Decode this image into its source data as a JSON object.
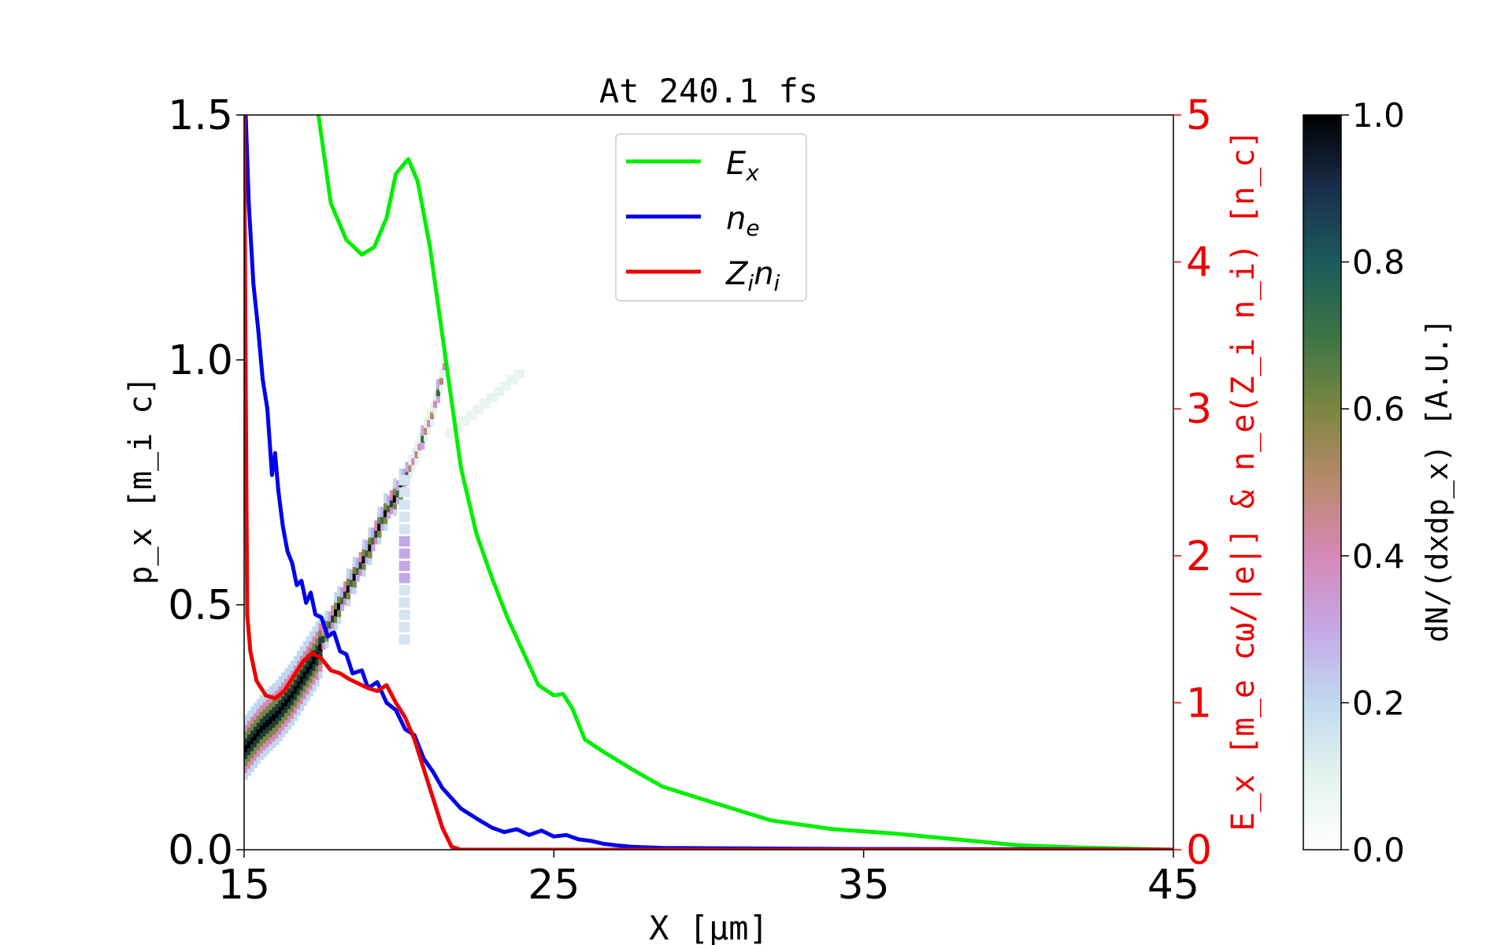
{
  "chart_data": {
    "type": "line",
    "title": "At 240.1 fs",
    "xlabel": "X [μm]",
    "ylabel_left": "p_x [m_i c]",
    "ylabel_right": "E_x [m_e cω/|e|] & n_e(Z_i n_i) [n_c]",
    "colorbar_label": "dN/(dxdp_x) [A.U.]",
    "xlim": [
      15,
      45
    ],
    "ylim_left": [
      0,
      1.5
    ],
    "ylim_right": [
      0,
      5
    ],
    "colorbar_lim": [
      0,
      1
    ],
    "x_ticks": [
      "15",
      "25",
      "35",
      "45"
    ],
    "y_left_ticks": [
      "0.0",
      "0.5",
      "1.0",
      "1.5"
    ],
    "y_right_ticks": [
      "0",
      "1",
      "2",
      "3",
      "4",
      "5"
    ],
    "colorbar_ticks": [
      "0.0",
      "0.2",
      "0.4",
      "0.6",
      "0.8",
      "1.0"
    ],
    "grid": false,
    "legend_position": "upper-center",
    "legend": [
      {
        "label": "E",
        "sub": "x",
        "color": "#00ee00"
      },
      {
        "label": "n",
        "sub": "e",
        "color": "#0000ee"
      },
      {
        "label": "Z",
        "sub": "i",
        "label2": "n",
        "sub2": "i",
        "color": "#ee0000"
      }
    ],
    "series": [
      {
        "name": "E_x",
        "axis": "right",
        "color": "#00ee00",
        "x": [
          17.4,
          17.8,
          18.3,
          18.8,
          19.2,
          19.6,
          19.9,
          20.3,
          20.6,
          21.0,
          21.5,
          22.0,
          22.5,
          23.0,
          23.5,
          24.0,
          24.5,
          25.0,
          25.3,
          25.6,
          26.0,
          26.5,
          27.5,
          28.5,
          30.0,
          32.0,
          34.0,
          36.0,
          38.0,
          40.0,
          42.0,
          45.0
        ],
        "y": [
          5.0,
          4.4,
          4.15,
          4.05,
          4.1,
          4.3,
          4.6,
          4.7,
          4.55,
          4.1,
          3.35,
          2.6,
          2.15,
          1.85,
          1.58,
          1.35,
          1.12,
          1.05,
          1.06,
          0.96,
          0.75,
          0.68,
          0.55,
          0.43,
          0.33,
          0.2,
          0.14,
          0.11,
          0.07,
          0.03,
          0.015,
          0.0
        ]
      },
      {
        "name": "n_e",
        "axis": "right",
        "color": "#0000ee",
        "x": [
          15.05,
          15.15,
          15.3,
          15.45,
          15.6,
          15.75,
          15.9,
          16.0,
          16.1,
          16.25,
          16.4,
          16.55,
          16.7,
          16.85,
          17.0,
          17.15,
          17.3,
          17.5,
          17.7,
          17.9,
          18.1,
          18.3,
          18.5,
          18.8,
          19.0,
          19.3,
          19.6,
          19.9,
          20.2,
          20.5,
          20.8,
          21.1,
          21.4,
          21.7,
          22.0,
          22.3,
          22.6,
          23.0,
          23.4,
          23.8,
          24.2,
          24.6,
          25.0,
          25.4,
          25.8,
          26.2,
          26.6,
          27.0,
          27.5,
          28.5,
          30.0,
          35.0,
          40.0,
          45.0
        ],
        "y": [
          5.0,
          4.4,
          3.85,
          3.55,
          3.2,
          3.0,
          2.55,
          2.7,
          2.45,
          2.2,
          2.03,
          1.95,
          1.8,
          1.83,
          1.68,
          1.75,
          1.6,
          1.58,
          1.45,
          1.48,
          1.35,
          1.33,
          1.2,
          1.22,
          1.1,
          1.14,
          1.0,
          0.95,
          0.82,
          0.78,
          0.62,
          0.53,
          0.42,
          0.35,
          0.28,
          0.24,
          0.2,
          0.15,
          0.12,
          0.14,
          0.1,
          0.13,
          0.09,
          0.1,
          0.07,
          0.06,
          0.04,
          0.03,
          0.02,
          0.012,
          0.01,
          0.005,
          0.003,
          0.0
        ]
      },
      {
        "name": "Z_i n_i",
        "axis": "right",
        "color": "#ee0000",
        "x": [
          15.0,
          15.05,
          15.1,
          15.2,
          15.4,
          15.7,
          16.0,
          16.3,
          16.6,
          16.9,
          17.2,
          17.5,
          17.8,
          18.1,
          18.4,
          18.7,
          19.0,
          19.3,
          19.6,
          19.9,
          20.2,
          20.5,
          20.8,
          21.1,
          21.4,
          21.7,
          22.0,
          25.0,
          30.0,
          35.0,
          40.0,
          45.0
        ],
        "y": [
          5.0,
          3.2,
          1.6,
          1.35,
          1.15,
          1.05,
          1.03,
          1.08,
          1.18,
          1.28,
          1.34,
          1.3,
          1.22,
          1.2,
          1.16,
          1.13,
          1.1,
          1.08,
          1.12,
          1.0,
          0.9,
          0.75,
          0.55,
          0.35,
          0.15,
          0.02,
          0.0,
          0.0,
          0.0,
          0.0,
          0.0,
          0.0
        ]
      }
    ],
    "phase_space_ions": {
      "axis": "left",
      "colormap": "cubehelix_r",
      "x_range": [
        15.0,
        21.5
      ],
      "px_range": [
        0.2,
        1.05
      ],
      "trace_points": [
        [
          15.0,
          0.22
        ],
        [
          15.5,
          0.26
        ],
        [
          16.0,
          0.29
        ],
        [
          16.5,
          0.33
        ],
        [
          17.0,
          0.38
        ],
        [
          17.3,
          0.41
        ],
        [
          17.6,
          0.46
        ],
        [
          18.0,
          0.51
        ],
        [
          18.5,
          0.57
        ],
        [
          19.0,
          0.63
        ],
        [
          19.5,
          0.7
        ],
        [
          20.0,
          0.75
        ],
        [
          20.5,
          0.82
        ],
        [
          21.0,
          0.9
        ],
        [
          21.3,
          0.97
        ],
        [
          21.5,
          1.03
        ]
      ]
    }
  }
}
